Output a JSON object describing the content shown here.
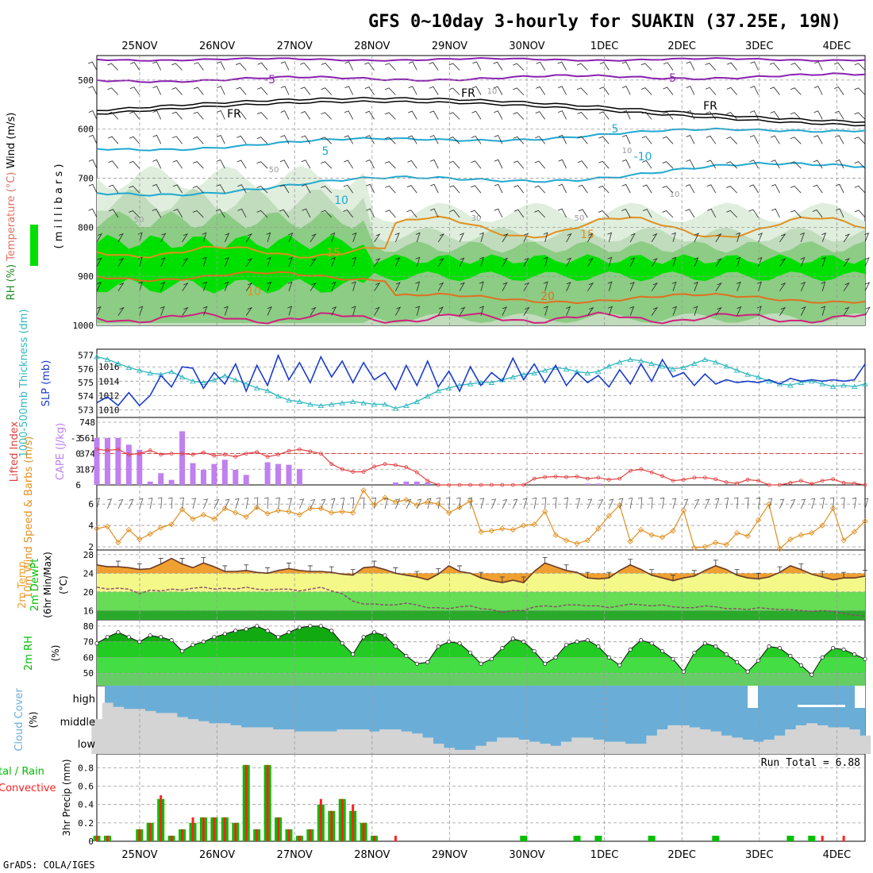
{
  "header": {
    "title": "GFS 0~10day 3-hourly for SUAKIN (37.25E, 19N)",
    "credit": "GrADS: COLA/IGES",
    "run_total_label": "Run Total = 6.88"
  },
  "colors": {
    "grid": "#9a9a9a",
    "rh_green": "#00e000",
    "temp_minus5": "#8a20b0",
    "freezing": "#000000",
    "temp_5_10": "#20a8d0",
    "temp_15_20": "#e09020",
    "slp": "#1a3ccc",
    "thickness": "#30b8c0",
    "cape": "#c080f0",
    "lifted_index": "#e04040",
    "wind10m": "#e09020",
    "temp_fill": "#f0a030",
    "dewpt_fill": "#f0f070",
    "cloud_blue": "#6aaed8",
    "cloud_gray": "#d4d4d4",
    "precip_total": "#00c000",
    "precip_conv": "#ff2020"
  },
  "chart_data": [
    {
      "id": "upper-air",
      "type": "heatmap",
      "title": "GFS 0~10day 3-hourly for SUAKIN (37.25E, 19N)",
      "xlabels": [
        "25NOV",
        "26NOV",
        "27NOV",
        "28NOV",
        "29NOV",
        "30NOV",
        "1DEC",
        "2DEC",
        "3DEC",
        "4DEC"
      ],
      "ylabel_parts": [
        {
          "text": "RH (%)",
          "color": "#228822"
        },
        {
          "text": "Temperature (°C)",
          "color": "#e07060"
        },
        {
          "text": "Wind (m/s)",
          "color": "#000000"
        }
      ],
      "ylabel_right": "( m i l l i b a r s )",
      "yticks": [
        500,
        600,
        700,
        800,
        900,
        1000
      ],
      "ylim": [
        1000,
        450
      ],
      "contour_labels": [
        "-5",
        "-5",
        "FR",
        "FR",
        "FR",
        "5",
        "5",
        "-10",
        "10",
        "15",
        "15",
        "10",
        "20",
        "50",
        "50",
        "30",
        "50",
        "10",
        "10",
        "10"
      ]
    },
    {
      "id": "slp-thickness",
      "type": "line",
      "ylabel_left": "1000-500mb Thickness (dm)",
      "ylabel_right": "SLP (mb)",
      "yticks_left": [
        573,
        574,
        575,
        576,
        577
      ],
      "yticks_right": [
        1010,
        1012,
        1014,
        1016
      ],
      "series": [
        {
          "name": "SLP (mb)",
          "values": [
            1011,
            1011.8,
            1010.6,
            1012.4,
            1010.6,
            1012,
            1014.8,
            1013.2,
            1016,
            1015.8,
            1013,
            1015.2,
            1013.6,
            1016.4,
            1012.6,
            1016.2,
            1013.4,
            1017.6,
            1014.2,
            1016.6,
            1013.8,
            1017.4,
            1014.6,
            1016.8,
            1013.8,
            1016.6,
            1014.2,
            1015.2,
            1012.8,
            1016.2,
            1013.4,
            1016.8,
            1013.2,
            1015.4,
            1012.6,
            1016,
            1013.4,
            1015.2,
            1014,
            1017.2,
            1014.2,
            1016.4,
            1013.8,
            1016.2,
            1013.4,
            1015.2,
            1013.8,
            1014.8,
            1013.2,
            1015.6,
            1013.6,
            1016.4,
            1014,
            1017,
            1014.6,
            1015.2,
            1013.4,
            1015,
            1013.6,
            1014.2,
            1013.8,
            1014,
            1013.8,
            1014.2,
            1013.6,
            1014.4,
            1014,
            1014.2,
            1014,
            1014.2,
            1014,
            1014.2,
            1016.4
          ]
        },
        {
          "name": "Thickness (dm)",
          "values": [
            576.9,
            576.7,
            576.4,
            576.1,
            575.9,
            575.7,
            575.6,
            575.8,
            575.4,
            575.1,
            575.0,
            575.2,
            575.5,
            575.2,
            574.9,
            574.6,
            574.4,
            574.0,
            573.7,
            573.6,
            573.4,
            573.3,
            573.4,
            573.5,
            573.6,
            573.5,
            573.4,
            573.4,
            573.1,
            573.3,
            573.6,
            574.0,
            574.4,
            574.6,
            574.8,
            574.9,
            575.0,
            575.0,
            575.2,
            575.4,
            575.6,
            575.7,
            575.9,
            576.1,
            576.0,
            575.8,
            575.7,
            575.8,
            576.2,
            576.5,
            576.7,
            576.6,
            576.4,
            576.2,
            576.0,
            576.1,
            576.4,
            576.7,
            576.5,
            576.2,
            575.9,
            575.6,
            575.4,
            575.1,
            574.9,
            574.8,
            575.0,
            575.1,
            574.9,
            574.7,
            574.8,
            574.7,
            574.9
          ]
        }
      ]
    },
    {
      "id": "cape-li",
      "type": "bar",
      "ylabel_left": "Lifted Index",
      "ylabel_right": "CAPE (J/kg)",
      "yticks_left": [
        "-3",
        "0",
        "3",
        "6"
      ],
      "yticks_right": [
        "748",
        "561",
        "374",
        "187"
      ],
      "series": [
        {
          "name": "CAPE (J/kg)",
          "values": [
            560,
            560,
            560,
            480,
            420,
            40,
            140,
            60,
            640,
            260,
            180,
            250,
            300,
            180,
            120,
            0,
            270,
            250,
            240,
            190,
            0,
            0,
            0,
            0,
            0,
            0,
            0,
            0,
            30,
            40,
            40,
            30,
            0,
            0,
            0,
            0,
            0,
            0,
            0,
            0,
            0,
            0,
            0,
            0,
            0,
            0,
            15,
            15,
            0,
            0,
            0,
            0,
            0,
            0,
            0,
            0,
            0,
            0,
            0,
            0,
            0,
            0,
            0,
            0,
            0,
            0,
            0,
            0,
            0,
            0,
            0,
            0,
            0
          ]
        },
        {
          "name": "Lifted Index",
          "values": [
            -0.8,
            -0.6,
            -0.8,
            0.2,
            0.0,
            -0.6,
            0.2,
            0.0,
            0.0,
            0.2,
            -0.2,
            0.4,
            0.2,
            0.6,
            0.0,
            -0.3,
            0.6,
            0.2,
            -0.5,
            -0.8,
            -0.4,
            0.0,
            2.0,
            3.0,
            3.5,
            3.5,
            2.5,
            2.0,
            2.2,
            2.6,
            3.6,
            5.2,
            6.0,
            6.0,
            6.0,
            6.0,
            6.0,
            6.0,
            6.0,
            6.0,
            6.0,
            4.8,
            4.5,
            4.4,
            4.5,
            4.4,
            4.8,
            4.6,
            5.0,
            4.8,
            3.3,
            3.0,
            3.6,
            4.3,
            5.2,
            5.0,
            4.6,
            4.6,
            4.9,
            5.5,
            5.7,
            5.0,
            5.2,
            6.0,
            6.0,
            5.6,
            5.2,
            5.8,
            5.2,
            4.9,
            5.6,
            5.7,
            6.0
          ]
        }
      ]
    },
    {
      "id": "wind10m",
      "type": "line",
      "ylabel": "10m Wind Speed & Barbs (m/s)",
      "yticks": [
        2,
        4,
        6
      ],
      "ylim": [
        1.7,
        7.8
      ],
      "series": [
        {
          "name": "10m Wind Speed",
          "values": [
            3.7,
            3.9,
            2.4,
            3.6,
            2.7,
            3.2,
            3.8,
            4.1,
            5.5,
            4.6,
            5.0,
            4.6,
            5.6,
            5.2,
            4.8,
            5.7,
            5.1,
            5.4,
            5.3,
            5.0,
            5.6,
            5.6,
            5.2,
            5.3,
            5.2,
            7.3,
            5.9,
            6.6,
            6.2,
            6.4,
            5.9,
            6.2,
            6.0,
            5.2,
            5.7,
            6.3,
            3.4,
            3.5,
            3.7,
            3.6,
            4.0,
            4.1,
            5.3,
            3.1,
            2.6,
            2.3,
            2.6,
            3.7,
            4.9,
            5.9,
            2.5,
            3.6,
            3.1,
            2.9,
            3.5,
            5.4,
            1.9,
            2.0,
            2.4,
            2.2,
            3.3,
            3.0,
            4.5,
            6.0,
            1.8,
            2.7,
            3.1,
            3.3,
            4.0,
            5.6,
            2.6,
            3.4,
            4.4
          ]
        }
      ]
    },
    {
      "id": "temp2m",
      "type": "area",
      "ylabel": "2m Temp 2m DewPt (6hr Min/Max) (°C)",
      "yticks": [
        16,
        20,
        24,
        28
      ],
      "ylim": [
        14,
        29
      ],
      "series": [
        {
          "name": "2m Temp",
          "values": [
            25.8,
            25.4,
            25.4,
            25.2,
            24.8,
            25.0,
            26.0,
            27.2,
            26.0,
            25.2,
            26.2,
            25.4,
            24.4,
            24.4,
            24.6,
            24.2,
            24.0,
            24.6,
            25.0,
            24.6,
            24.4,
            24.4,
            24.2,
            23.8,
            23.6,
            25.2,
            25.4,
            24.8,
            24.0,
            23.6,
            23.2,
            22.6,
            23.8,
            25.6,
            24.4,
            24.0,
            23.0,
            22.4,
            22.0,
            22.5,
            22.0,
            24.4,
            26.2,
            25.4,
            24.6,
            24.2,
            23.0,
            22.8,
            23.0,
            24.6,
            25.8,
            24.8,
            23.6,
            23.0,
            22.4,
            23.0,
            23.4,
            24.6,
            25.6,
            24.8,
            23.6,
            23.0,
            22.8,
            23.2,
            24.2,
            25.6,
            24.8,
            23.8,
            23.2,
            22.6,
            23.0,
            23.0,
            23.4
          ]
        },
        {
          "name": "2m DewPt",
          "values": [
            21.0,
            20.6,
            20.8,
            20.6,
            19.6,
            20.4,
            20.2,
            20.6,
            20.4,
            20.8,
            21.0,
            20.6,
            20.8,
            20.6,
            21.0,
            20.6,
            20.4,
            20.6,
            20.6,
            20.2,
            20.6,
            21.0,
            20.2,
            19.6,
            18.0,
            17.4,
            17.4,
            17.2,
            17.2,
            17.6,
            17.2,
            16.6,
            16.6,
            16.4,
            16.8,
            17.0,
            16.4,
            16.2,
            15.6,
            16.0,
            16.0,
            16.8,
            17.0,
            16.8,
            17.2,
            17.2,
            17.0,
            17.0,
            16.6,
            17.0,
            17.4,
            17.2,
            17.0,
            17.2,
            16.8,
            16.6,
            16.6,
            17.0,
            16.8,
            16.4,
            16.4,
            16.2,
            16.6,
            16.4,
            16.2,
            16.2,
            16.0,
            15.8,
            16.0,
            15.8,
            15.4,
            15.0,
            14.8
          ]
        }
      ]
    },
    {
      "id": "rh2m",
      "type": "area",
      "ylabel": "2m RH (%)",
      "yticks": [
        50,
        60,
        70,
        80
      ],
      "ylim": [
        42,
        84
      ],
      "series": [
        {
          "name": "2m RH",
          "values": [
            69,
            73,
            76,
            73,
            70,
            74,
            73,
            71,
            64,
            68,
            70,
            73,
            75,
            77,
            78,
            80,
            77,
            73,
            76,
            79,
            80,
            80,
            77,
            69,
            62,
            73,
            76,
            74,
            67,
            61,
            56,
            57,
            67,
            70,
            69,
            63,
            56,
            59,
            66,
            72,
            70,
            64,
            56,
            60,
            68,
            70,
            71,
            67,
            60,
            55,
            65,
            71,
            69,
            64,
            59,
            51,
            63,
            69,
            67,
            62,
            57,
            51,
            58,
            67,
            66,
            61,
            55,
            49,
            60,
            66,
            65,
            62,
            59
          ]
        }
      ]
    },
    {
      "id": "cloud",
      "type": "area",
      "ylabel": "Cloud Cover (%)",
      "ytick_labels": [
        "high",
        "middle",
        "low"
      ],
      "series": [
        {
          "name": "low",
          "values": [
            17,
            25,
            23,
            22,
            22,
            21,
            20,
            20,
            18,
            17,
            16,
            15,
            15,
            14,
            13,
            13,
            13,
            12,
            12,
            11,
            11,
            11,
            11,
            12,
            12,
            12,
            11,
            12,
            12,
            11,
            10,
            8,
            5,
            3,
            2,
            2,
            4,
            6,
            8,
            8,
            7,
            6,
            5,
            4,
            6,
            8,
            8,
            7,
            6,
            6,
            5,
            5,
            9,
            12,
            14,
            14,
            13,
            12,
            11,
            9,
            8,
            7,
            6,
            7,
            9,
            12,
            14,
            15,
            14,
            13,
            13,
            12,
            9
          ]
        }
      ]
    },
    {
      "id": "precip",
      "type": "bar",
      "ylabel": "3hr Precip (mm)",
      "legend_parts": [
        {
          "text": "Total / Rain",
          "color": "#00c000"
        },
        {
          "text": "Convective",
          "color": "#ff2020"
        }
      ],
      "yticks": [
        0,
        0.2,
        0.4,
        0.6,
        0.8
      ],
      "ylim": [
        0,
        0.95
      ],
      "series": [
        {
          "name": "Total",
          "values": [
            0.06,
            0.06,
            0,
            0,
            0.13,
            0.2,
            0.46,
            0.06,
            0.13,
            0.2,
            0.26,
            0.26,
            0.26,
            0.2,
            0.83,
            0.13,
            0.83,
            0.26,
            0.13,
            0.06,
            0.13,
            0.4,
            0.33,
            0.46,
            0.33,
            0.2,
            0.06,
            0,
            0,
            0,
            0,
            0,
            0,
            0,
            0,
            0,
            0,
            0,
            0,
            0,
            0.06,
            0,
            0,
            0,
            0,
            0.06,
            0,
            0.06,
            0,
            0,
            0,
            0,
            0.06,
            0,
            0,
            0,
            0,
            0,
            0.06,
            0,
            0,
            0,
            0,
            0,
            0,
            0.06,
            0,
            0.06,
            0,
            0,
            0,
            0,
            0
          ]
        },
        {
          "name": "Convective",
          "values": [
            0.06,
            0.06,
            0,
            0,
            0.13,
            0.2,
            0.5,
            0.06,
            0.13,
            0.26,
            0.26,
            0.26,
            0.26,
            0.2,
            0.83,
            0.13,
            0.83,
            0.26,
            0.13,
            0.06,
            0.13,
            0.46,
            0.33,
            0.46,
            0.4,
            0.2,
            0.06,
            0,
            0.06,
            0,
            0,
            0,
            0,
            0,
            0,
            0,
            0,
            0,
            0,
            0,
            0,
            0,
            0,
            0,
            0,
            0,
            0,
            0,
            0,
            0,
            0,
            0,
            0,
            0,
            0,
            0,
            0,
            0,
            0,
            0,
            0,
            0,
            0,
            0,
            0,
            0,
            0,
            0,
            0.06,
            0,
            0.06,
            0,
            0
          ]
        }
      ]
    }
  ]
}
